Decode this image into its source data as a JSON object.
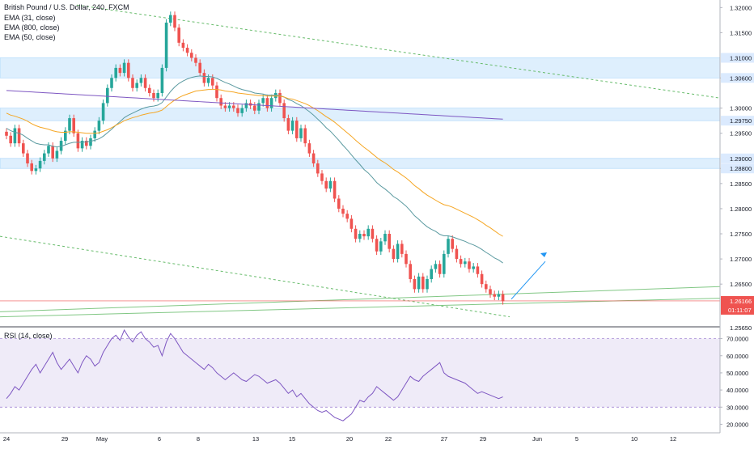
{
  "legend": {
    "symbol": "British Pound / U.S. Dollar, 240, FXCM",
    "ema1": "EMA (31, close)",
    "ema2": "EMA (800, close)",
    "ema3": "EMA (50, close)"
  },
  "rsi_legend": "RSI (14, close)",
  "chart_data": [
    {
      "type": "candlestick",
      "x_tick_labels": [
        "24",
        "29",
        "May",
        "6",
        "8",
        "13",
        "15",
        "20",
        "22",
        "27",
        "29",
        "Jun",
        "5",
        "10",
        "12"
      ],
      "price_axis_labels": [
        "1.32000",
        "1.31500",
        "1.30600",
        "1.30000",
        "1.29500",
        "1.28800",
        "1.28500",
        "1.28000",
        "1.27500",
        "1.27000",
        "1.26500"
      ],
      "highlight_labels": [
        "1.31000",
        "1.30600",
        "1.29750",
        "1.29000",
        "1.28800"
      ],
      "current_price": "1.26166",
      "countdown": "01:11:07",
      "bottom_price": "1.25650",
      "ylim": [
        1.2565,
        1.3215
      ],
      "zones": [
        [
          1.306,
          1.31
        ],
        [
          1.2975,
          1.3
        ],
        [
          1.288,
          1.29
        ]
      ],
      "close": [
        1.2945,
        1.293,
        1.296,
        1.293,
        1.291,
        1.289,
        1.2875,
        1.288,
        1.2895,
        1.291,
        1.2925,
        1.29,
        1.2915,
        1.2935,
        1.2955,
        1.298,
        1.295,
        1.292,
        1.2935,
        1.2925,
        1.294,
        1.2955,
        1.2975,
        1.301,
        1.304,
        1.306,
        1.308,
        1.307,
        1.309,
        1.306,
        1.304,
        1.305,
        1.306,
        1.304,
        1.303,
        1.302,
        1.303,
        1.308,
        1.317,
        1.3185,
        1.316,
        1.313,
        1.312,
        1.311,
        1.31,
        1.309,
        1.307,
        1.305,
        1.306,
        1.3045,
        1.302,
        1.3005,
        1.3,
        1.3005,
        1.3,
        1.299,
        1.3,
        1.301,
        1.3005,
        1.2995,
        1.301,
        1.302,
        1.3,
        1.302,
        1.303,
        1.301,
        1.298,
        1.2955,
        1.2975,
        1.294,
        1.296,
        1.293,
        1.291,
        1.289,
        1.287,
        1.2855,
        1.284,
        1.2855,
        1.282,
        1.28,
        1.279,
        1.278,
        1.276,
        1.274,
        1.275,
        1.2745,
        1.276,
        1.274,
        1.2715,
        1.2735,
        1.275,
        1.272,
        1.27,
        1.273,
        1.271,
        1.269,
        1.266,
        1.264,
        1.2665,
        1.264,
        1.266,
        1.268,
        1.269,
        1.267,
        1.271,
        1.274,
        1.272,
        1.27,
        1.269,
        1.2695,
        1.268,
        1.2685,
        1.267,
        1.265,
        1.264,
        1.263,
        1.2625,
        1.263,
        1.2616
      ],
      "ema_31": [
        1.296,
        1.2955,
        1.2952,
        1.295,
        1.2946,
        1.294,
        1.2935,
        1.293,
        1.2928,
        1.2927,
        1.2927,
        1.2924,
        1.2923,
        1.2924,
        1.2927,
        1.293,
        1.2932,
        1.2932,
        1.2932,
        1.2933,
        1.2934,
        1.2936,
        1.2939,
        1.2944,
        1.2951,
        1.2958,
        1.2966,
        1.2973,
        1.2981,
        1.2986,
        1.299,
        1.2994,
        1.2998,
        1.3001,
        1.3003,
        1.3004,
        1.3006,
        1.3011,
        1.3022,
        1.3033,
        1.3042,
        1.3049,
        1.3054,
        1.3058,
        1.3061,
        1.3063,
        1.3064,
        1.3063,
        1.3063,
        1.3062,
        1.3059,
        1.3055,
        1.3051,
        1.3048,
        1.3044,
        1.304,
        1.3037,
        1.3035,
        1.3033,
        1.303,
        1.3029,
        1.3028,
        1.3026,
        1.3026,
        1.3026,
        1.3025,
        1.3022,
        1.3017,
        1.3014,
        1.3009,
        1.3005,
        1.2999,
        1.2993,
        1.2986,
        1.2978,
        1.297,
        1.2961,
        1.2954,
        1.2945,
        1.2936,
        1.2926,
        1.2917,
        1.2907,
        1.2897,
        1.2888,
        1.2878,
        1.2871,
        1.2862,
        1.2852,
        1.2845,
        1.2839,
        1.2832,
        1.2824,
        1.2819,
        1.2812,
        1.2805,
        1.2796,
        1.2786,
        1.2779,
        1.2771,
        1.2764,
        1.2759,
        1.2755,
        1.2749,
        1.2746,
        1.2746,
        1.2744,
        1.2741,
        1.2738,
        1.2735,
        1.2731,
        1.2728,
        1.2724,
        1.2719,
        1.2713,
        1.2708,
        1.2702,
        1.2698,
        1.2692
      ],
      "ema_50": [
        1.299,
        1.2986,
        1.2984,
        1.2981,
        1.2978,
        1.2974,
        1.2969,
        1.2965,
        1.2962,
        1.296,
        1.2958,
        1.2955,
        1.2953,
        1.2952,
        1.2952,
        1.2953,
        1.2953,
        1.2952,
        1.2951,
        1.295,
        1.295,
        1.295,
        1.2951,
        1.2954,
        1.2957,
        1.2961,
        1.2966,
        1.297,
        1.2975,
        1.2978,
        1.2981,
        1.2983,
        1.2986,
        1.2988,
        1.299,
        1.2991,
        1.2993,
        1.2996,
        1.3003,
        1.301,
        1.3016,
        1.3021,
        1.3025,
        1.3028,
        1.3031,
        1.3034,
        1.3035,
        1.3036,
        1.3037,
        1.3037,
        1.3037,
        1.3036,
        1.3034,
        1.3033,
        1.3032,
        1.303,
        1.3029,
        1.3028,
        1.3027,
        1.3026,
        1.3025,
        1.3025,
        1.3024,
        1.3024,
        1.3024,
        1.3024,
        1.3022,
        1.3019,
        1.3018,
        1.3015,
        1.3012,
        1.3009,
        1.3005,
        1.3,
        1.2995,
        1.2989,
        1.2983,
        1.2978,
        1.2972,
        1.2965,
        1.2958,
        1.2951,
        1.2944,
        1.2936,
        1.2929,
        1.2922,
        1.2916,
        1.2909,
        1.2902,
        1.2896,
        1.2891,
        1.2885,
        1.2878,
        1.2873,
        1.2867,
        1.2861,
        1.2854,
        1.2846,
        1.284,
        1.2833,
        1.2827,
        1.2822,
        1.2817,
        1.2812,
        1.2808,
        1.2806,
        1.2803,
        1.2799,
        1.2795,
        1.2791,
        1.2787,
        1.2783,
        1.2778,
        1.2773,
        1.2767,
        1.2762,
        1.2756,
        1.275,
        1.2745
      ],
      "ema_800_start": 1.3035,
      "ema_800_end": 1.2978
    },
    {
      "type": "line",
      "title": "RSI (14, close)",
      "ylim": [
        15,
        75
      ],
      "tick_labels": [
        "70.0000",
        "60.0000",
        "50.0000",
        "40.0000",
        "30.0000",
        "20.0000"
      ],
      "band": [
        30,
        70
      ],
      "values": [
        35,
        38,
        42,
        40,
        44,
        48,
        52,
        55,
        50,
        54,
        58,
        62,
        56,
        52,
        55,
        58,
        54,
        50,
        56,
        60,
        58,
        54,
        56,
        62,
        66,
        70,
        72,
        69,
        75,
        71,
        68,
        72,
        74,
        70,
        68,
        65,
        66,
        60,
        68,
        73,
        70,
        66,
        62,
        60,
        58,
        56,
        54,
        52,
        55,
        53,
        50,
        48,
        46,
        48,
        50,
        48,
        46,
        45,
        47,
        49,
        48,
        46,
        44,
        45,
        46,
        44,
        41,
        38,
        40,
        36,
        38,
        35,
        32,
        30,
        28,
        27,
        28,
        26,
        24,
        23,
        22,
        24,
        26,
        30,
        34,
        33,
        36,
        38,
        42,
        40,
        38,
        36,
        34,
        36,
        40,
        44,
        48,
        46,
        45,
        48,
        50,
        52,
        54,
        56,
        50,
        48,
        47,
        46,
        45,
        44,
        42,
        40,
        38,
        39,
        38,
        37,
        36,
        35,
        36
      ]
    }
  ]
}
